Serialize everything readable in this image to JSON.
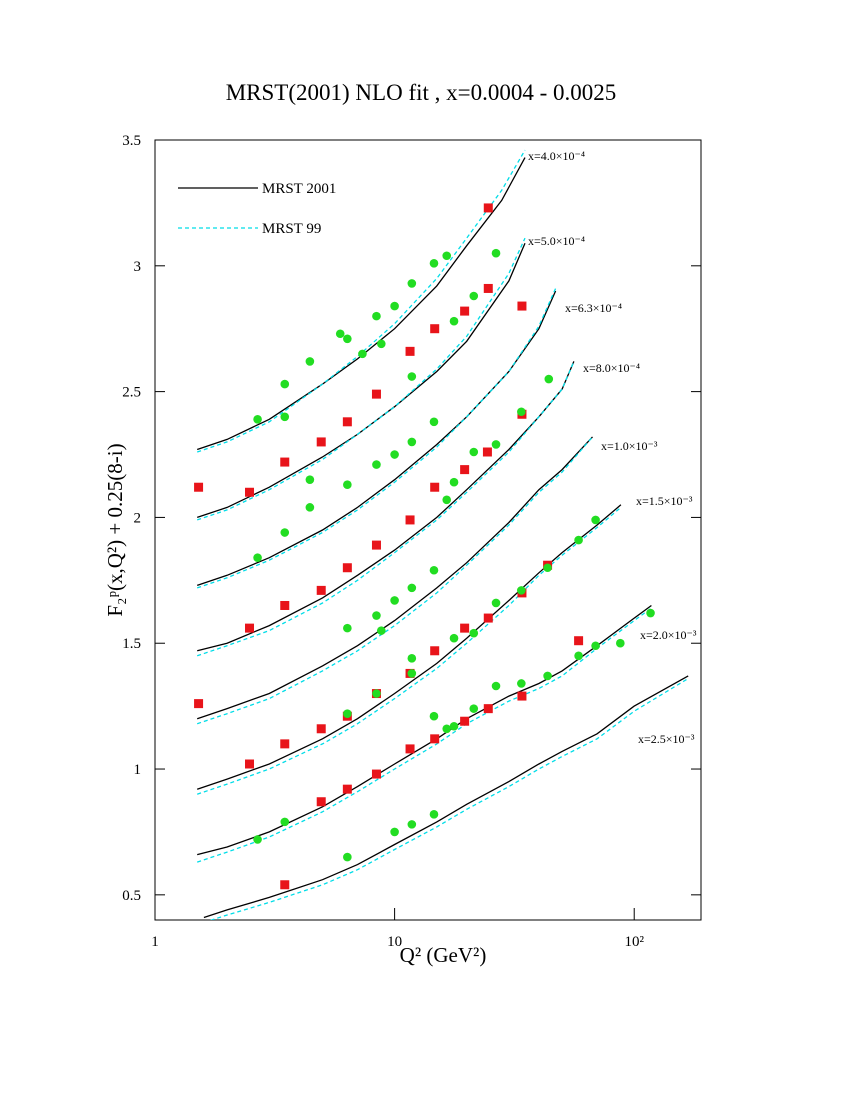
{
  "chart_data": {
    "type": "line",
    "title": "MRST(2001) NLO fit , x=0.0004 - 0.0025",
    "x_label": "Q² (GeV²)",
    "y_label": "F₂ᵖ(x,Q²) + 0.25(8-i)",
    "log_x": true,
    "xlim": [
      1,
      190
    ],
    "xticks": [
      1,
      10,
      {
        "value": 100,
        "label": "10²"
      }
    ],
    "ylim": [
      0.4,
      3.5
    ],
    "yticks": [
      0.5,
      1,
      1.5,
      2,
      2.5,
      3,
      3.5
    ],
    "curve_labels": [
      "x=4.0×10⁻⁴",
      "x=5.0×10⁻⁴",
      "x=6.3×10⁻⁴",
      "x=8.0×10⁻⁴",
      "x=1.0×10⁻³",
      "x=1.5×10⁻³",
      "x=2.0×10⁻³",
      "x=2.5×10⁻³"
    ],
    "curve_x": [
      [
        1.5,
        2,
        3,
        5,
        7,
        10,
        15,
        20,
        28,
        35
      ],
      [
        1.5,
        2,
        3,
        5,
        7,
        10,
        15,
        20,
        30,
        35
      ],
      [
        1.5,
        2,
        3,
        5,
        7,
        10,
        15,
        20,
        30,
        40,
        47
      ],
      [
        1.5,
        2,
        3,
        5,
        7,
        10,
        15,
        20,
        30,
        40,
        50,
        56
      ],
      [
        1.5,
        2,
        3,
        5,
        7,
        10,
        15,
        20,
        30,
        40,
        50,
        67
      ],
      [
        1.5,
        2,
        3,
        5,
        7,
        10,
        15,
        20,
        30,
        40,
        50,
        70,
        88
      ],
      [
        1.5,
        2,
        3,
        5,
        7,
        10,
        15,
        20,
        30,
        40,
        50,
        70,
        100,
        118
      ],
      [
        1.6,
        2,
        3,
        5,
        7,
        10,
        15,
        20,
        30,
        40,
        50,
        70,
        100,
        168
      ]
    ],
    "series": [
      {
        "name": "MRST 2001",
        "color": "#000000",
        "dashed": false,
        "curves": [
          [
            2.27,
            2.31,
            2.39,
            2.53,
            2.63,
            2.75,
            2.92,
            3.08,
            3.26,
            3.43
          ],
          [
            2.0,
            2.04,
            2.12,
            2.24,
            2.33,
            2.44,
            2.58,
            2.7,
            2.94,
            3.09
          ],
          [
            1.73,
            1.77,
            1.84,
            1.95,
            2.04,
            2.15,
            2.29,
            2.4,
            2.58,
            2.75,
            2.9
          ],
          [
            1.47,
            1.5,
            1.57,
            1.68,
            1.77,
            1.87,
            2.0,
            2.11,
            2.27,
            2.4,
            2.51,
            2.62
          ],
          [
            1.2,
            1.24,
            1.3,
            1.41,
            1.49,
            1.59,
            1.72,
            1.82,
            1.98,
            2.11,
            2.19,
            2.32
          ],
          [
            0.92,
            0.96,
            1.02,
            1.12,
            1.2,
            1.3,
            1.42,
            1.52,
            1.67,
            1.78,
            1.86,
            1.97,
            2.05
          ],
          [
            0.66,
            0.69,
            0.75,
            0.85,
            0.93,
            1.02,
            1.12,
            1.2,
            1.29,
            1.34,
            1.39,
            1.49,
            1.6,
            1.65
          ],
          [
            0.41,
            0.44,
            0.49,
            0.56,
            0.62,
            0.7,
            0.79,
            0.86,
            0.95,
            1.02,
            1.07,
            1.14,
            1.25,
            1.37
          ]
        ]
      },
      {
        "name": "MRST 99",
        "color": "#00dde8",
        "dashed": true,
        "curves": [
          [
            2.26,
            2.3,
            2.38,
            2.53,
            2.64,
            2.77,
            2.95,
            3.11,
            3.3,
            3.46
          ],
          [
            1.99,
            2.03,
            2.11,
            2.23,
            2.33,
            2.44,
            2.59,
            2.72,
            2.97,
            3.11
          ],
          [
            1.72,
            1.76,
            1.83,
            1.94,
            2.03,
            2.14,
            2.28,
            2.4,
            2.58,
            2.76,
            2.91
          ],
          [
            1.45,
            1.49,
            1.55,
            1.66,
            1.75,
            1.86,
            1.99,
            2.1,
            2.26,
            2.4,
            2.51,
            2.62
          ],
          [
            1.18,
            1.22,
            1.28,
            1.39,
            1.47,
            1.57,
            1.7,
            1.81,
            1.97,
            2.1,
            2.18,
            2.32
          ],
          [
            0.9,
            0.94,
            1.0,
            1.1,
            1.18,
            1.28,
            1.4,
            1.5,
            1.65,
            1.77,
            1.85,
            1.96,
            2.04
          ],
          [
            0.63,
            0.67,
            0.73,
            0.83,
            0.91,
            1.0,
            1.1,
            1.18,
            1.27,
            1.32,
            1.37,
            1.48,
            1.59,
            1.64
          ],
          [
            0.39,
            0.42,
            0.47,
            0.54,
            0.6,
            0.68,
            0.77,
            0.84,
            0.93,
            1.0,
            1.05,
            1.12,
            1.23,
            1.36
          ]
        ]
      }
    ],
    "points": [
      {
        "marker": "square",
        "color": "#e8141a",
        "x": [
          1.52,
          2.48,
          3.48,
          4.94,
          6.35,
          8.4,
          11.6,
          14.7,
          19.6,
          24.6,
          24.6,
          34,
          34,
          24.4,
          19.6,
          14.7,
          11.6,
          8.4,
          6.35,
          4.94,
          3.48,
          2.48,
          1.52,
          3.48,
          4.94,
          6.35,
          8.4,
          11.6,
          14.7,
          19.6,
          24.6,
          34,
          43.5,
          58.6,
          34,
          24.6,
          19.6,
          14.7,
          11.6,
          8.4,
          6.35,
          4.94,
          2.48,
          3.48
        ],
        "values": [
          2.12,
          2.1,
          2.22,
          2.3,
          2.38,
          2.49,
          2.66,
          2.75,
          2.82,
          2.91,
          3.23,
          2.84,
          2.41,
          2.26,
          2.19,
          2.12,
          1.99,
          1.89,
          1.8,
          1.71,
          1.65,
          1.56,
          1.26,
          1.1,
          1.16,
          1.21,
          1.3,
          1.38,
          1.47,
          1.56,
          1.6,
          1.7,
          1.81,
          1.51,
          1.29,
          1.24,
          1.19,
          1.12,
          1.08,
          0.98,
          0.92,
          0.87,
          1.02,
          0.54
        ]
      },
      {
        "marker": "circle",
        "color": "#22dd22",
        "x": [
          2.68,
          3.48,
          3.48,
          4.43,
          5.93,
          6.35,
          7.34,
          8.4,
          8.8,
          10,
          11.8,
          11.8,
          14.6,
          16.5,
          17.7,
          21.4,
          26.5,
          33.8,
          44,
          26.5,
          21.4,
          17.7,
          16.5,
          14.6,
          11.8,
          10,
          8.4,
          6.35,
          4.43,
          4.43,
          3.48,
          2.68,
          6.35,
          8.4,
          8.8,
          10,
          11.8,
          14.6,
          17.7,
          21.4,
          26.5,
          33.8,
          43.5,
          58.6,
          69,
          117,
          87.5,
          69,
          58.6,
          43.5,
          33.8,
          26.5,
          21.4,
          17.7,
          16.5,
          14.6,
          11.8,
          11.8,
          8.4,
          6.35,
          3.48,
          2.68,
          6.35,
          10,
          11.8,
          14.6
        ],
        "values": [
          2.39,
          2.53,
          2.4,
          2.62,
          2.73,
          2.71,
          2.65,
          2.8,
          2.69,
          2.84,
          2.93,
          2.56,
          3.01,
          3.04,
          2.78,
          2.88,
          3.05,
          2.42,
          2.55,
          2.29,
          2.26,
          2.14,
          2.07,
          2.38,
          2.3,
          2.25,
          2.21,
          2.13,
          2.15,
          2.04,
          1.94,
          1.84,
          1.56,
          1.61,
          1.55,
          1.67,
          1.72,
          1.79,
          1.52,
          1.54,
          1.66,
          1.71,
          1.8,
          1.91,
          1.99,
          1.62,
          1.5,
          1.49,
          1.45,
          1.37,
          1.34,
          1.33,
          1.24,
          1.17,
          1.16,
          1.21,
          1.44,
          1.38,
          1.3,
          1.22,
          0.79,
          0.72,
          0.65,
          0.75,
          0.78,
          0.82
        ]
      }
    ]
  }
}
